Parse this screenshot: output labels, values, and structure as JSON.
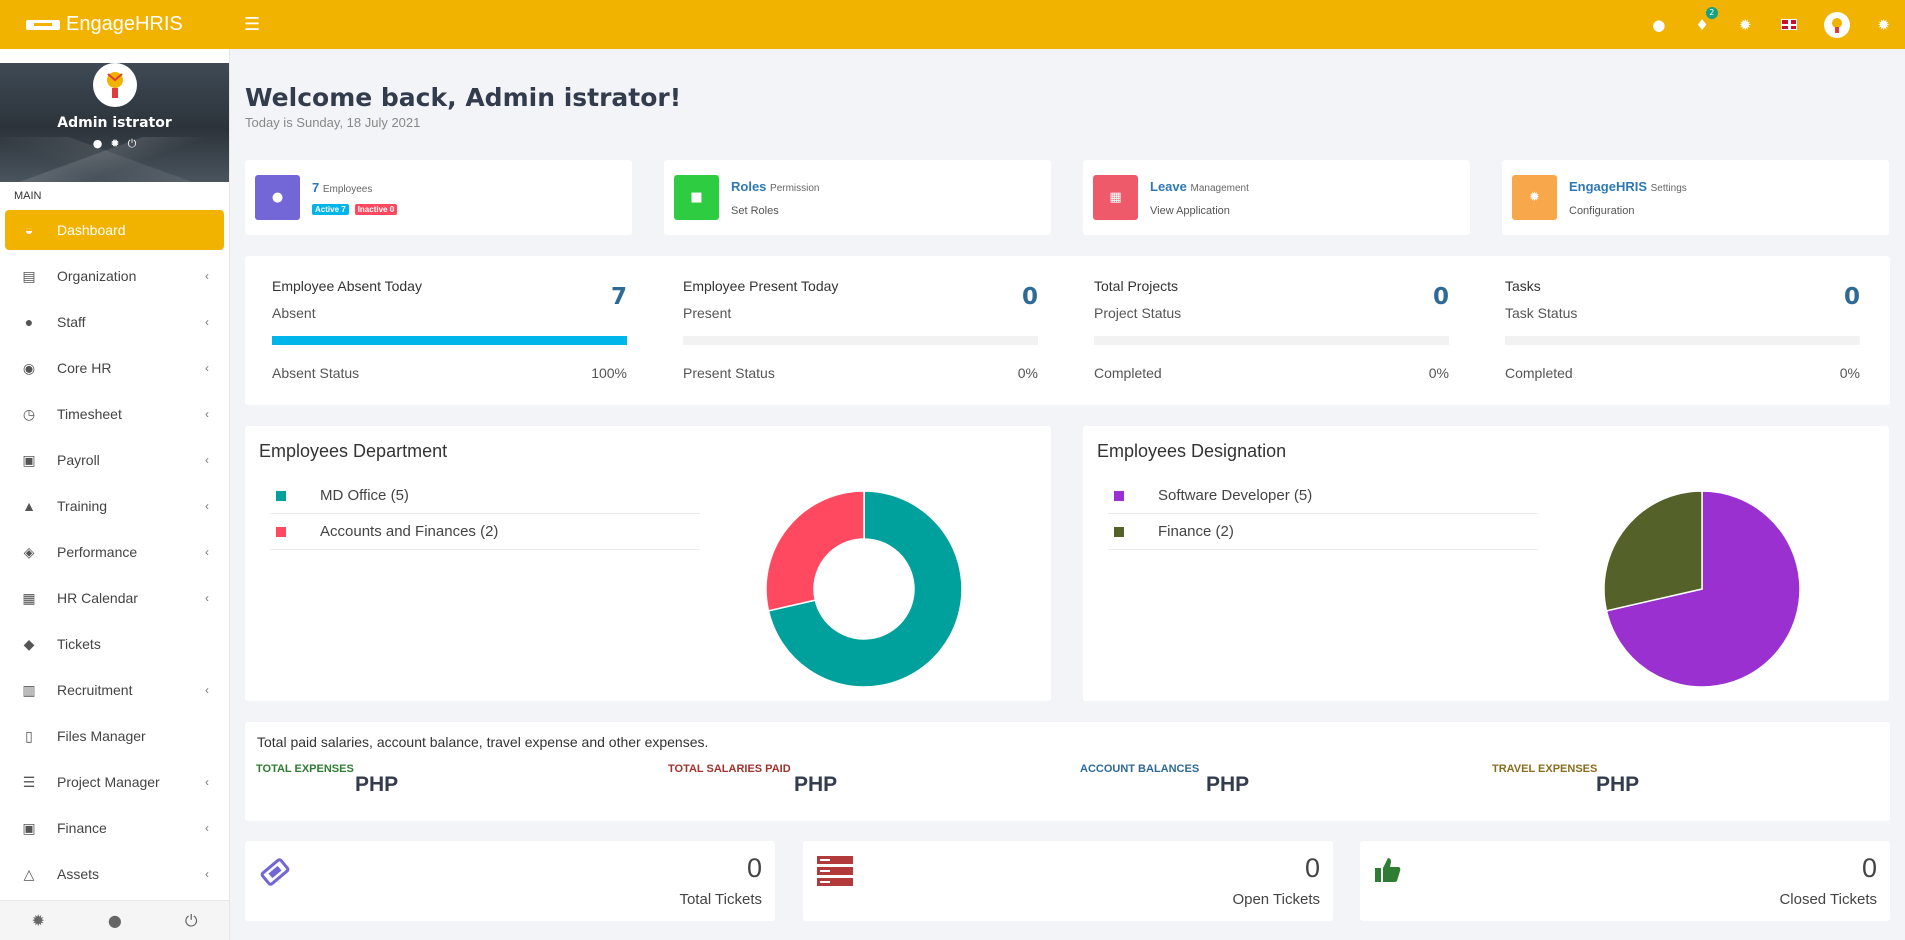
{
  "app": {
    "brand": "EngageHRIS",
    "notification_count": "2"
  },
  "sidebar": {
    "user_name": "Admin istrator",
    "section_label": "MAIN",
    "items": [
      {
        "label": "Dashboard",
        "icon": "dashboard-icon"
      },
      {
        "label": "Organization",
        "icon": "building-icon"
      },
      {
        "label": "Staff",
        "icon": "user-icon"
      },
      {
        "label": "Core HR",
        "icon": "futbol-icon"
      },
      {
        "label": "Timesheet",
        "icon": "clock-icon"
      },
      {
        "label": "Payroll",
        "icon": "money-icon"
      },
      {
        "label": "Training",
        "icon": "graduation-cap-icon"
      },
      {
        "label": "Performance",
        "icon": "cube-icon"
      },
      {
        "label": "HR Calendar",
        "icon": "calendar-icon"
      },
      {
        "label": "Tickets",
        "icon": "ticket-icon"
      },
      {
        "label": "Recruitment",
        "icon": "newspaper-icon"
      },
      {
        "label": "Files Manager",
        "icon": "file-icon"
      },
      {
        "label": "Project Manager",
        "icon": "server-icon"
      },
      {
        "label": "Finance",
        "icon": "money-icon"
      },
      {
        "label": "Assets",
        "icon": "flask-icon"
      }
    ]
  },
  "header": {
    "welcome": "Welcome back, Admin istrator!",
    "today": "Today is Sunday, 18 July 2021"
  },
  "info_cards": [
    {
      "count": "7",
      "title": "Employees",
      "active": "Active 7",
      "inactive": "Inactive 0",
      "color": "#7367d8"
    },
    {
      "title": "Roles",
      "subtitle": "Permission",
      "link": "Set Roles",
      "color": "#2ecc40"
    },
    {
      "title": "Leave",
      "subtitle": "Management",
      "link": "View Application",
      "color": "#ef5a6b"
    },
    {
      "title": "EngageHRIS",
      "subtitle": "Settings",
      "link": "Configuration",
      "color": "#f8a84b"
    }
  ],
  "stats": [
    {
      "title": "Employee Absent Today",
      "sub": "Absent",
      "value": "7",
      "foot_label": "Absent Status",
      "foot_value": "100%",
      "progress": 1.0
    },
    {
      "title": "Employee Present Today",
      "sub": "Present",
      "value": "0",
      "foot_label": "Present Status",
      "foot_value": "0%",
      "progress": 0
    },
    {
      "title": "Total Projects",
      "sub": "Project Status",
      "value": "0",
      "foot_label": "Completed",
      "foot_value": "0%",
      "progress": 0
    },
    {
      "title": "Tasks",
      "sub": "Task Status",
      "value": "0",
      "foot_label": "Completed",
      "foot_value": "0%",
      "progress": 0
    }
  ],
  "department": {
    "title": "Employees Department",
    "legend": [
      {
        "label": "MD Office (5)",
        "color": "#00a09d"
      },
      {
        "label": "Accounts and Finances (2)",
        "color": "#ff4961"
      }
    ]
  },
  "designation": {
    "title": "Employees Designation",
    "legend": [
      {
        "label": "Software Developer (5)",
        "color": "#9b30d1"
      },
      {
        "label": "Finance (2)",
        "color": "#546229"
      }
    ]
  },
  "chart_data": [
    {
      "type": "pie",
      "variant": "donut",
      "categories": [
        "MD Office",
        "Accounts and Finances"
      ],
      "values": [
        5,
        2
      ],
      "colors": [
        "#00a09d",
        "#ff4961"
      ]
    },
    {
      "type": "pie",
      "categories": [
        "Software Developer",
        "Finance"
      ],
      "values": [
        5,
        2
      ],
      "colors": [
        "#9b30d1",
        "#546229"
      ]
    }
  ],
  "salary": {
    "description": "Total paid salaries, account balance, travel expense and other expenses.",
    "columns": [
      {
        "label": "TOTAL EXPENSES",
        "value": "PHP",
        "color": "#2f7d32"
      },
      {
        "label": "TOTAL SALARIES PAID",
        "value": "PHP",
        "color": "#a0332e"
      },
      {
        "label": "ACCOUNT BALANCES",
        "value": "PHP",
        "color": "#2e6a96"
      },
      {
        "label": "TRAVEL EXPENSES",
        "value": "PHP",
        "color": "#8a6d1e"
      }
    ]
  },
  "tickets": [
    {
      "value": "0",
      "label": "Total Tickets",
      "icon": "ticket-icon",
      "color": "#7367d8"
    },
    {
      "value": "0",
      "label": "Open Tickets",
      "icon": "server-icon",
      "color": "#b23a3a"
    },
    {
      "value": "0",
      "label": "Closed Tickets",
      "icon": "thumbs-up-icon",
      "color": "#2f7d32"
    }
  ]
}
